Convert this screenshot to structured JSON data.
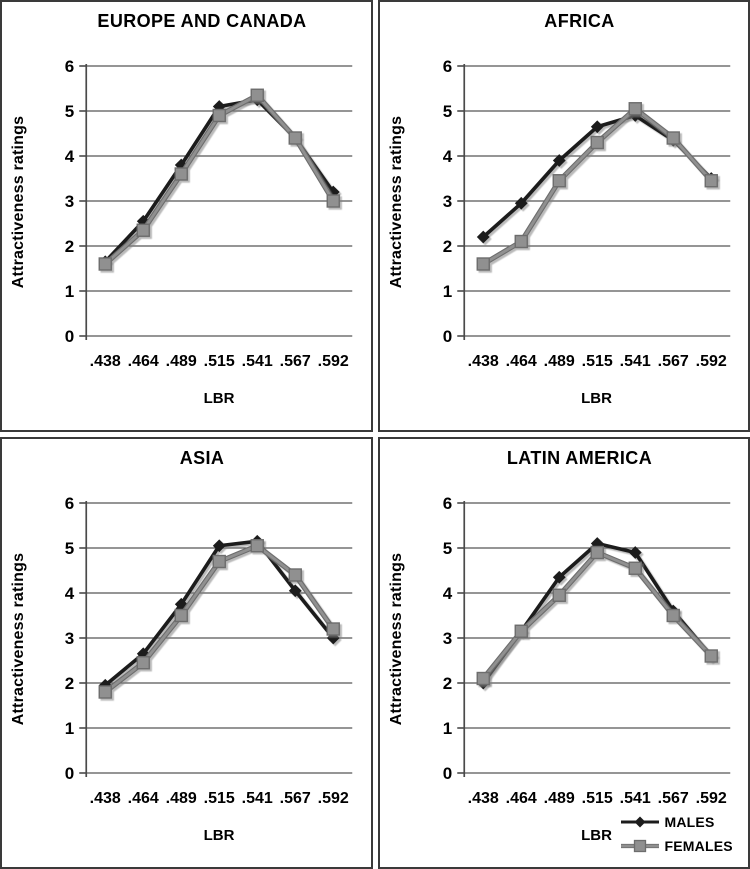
{
  "colors": {
    "males_line": "#1c1c1c",
    "females_line": "#909090",
    "females_edge": "#6d6d6d",
    "grid_line": "#565656",
    "axis_line": "#4a4a4a",
    "panel_border": "#3a3a3a",
    "text": "#000000",
    "shadow": "rgba(130,130,130,0.55)"
  },
  "chart_data": [
    {
      "type": "line",
      "title": "EUROPE AND CANADA",
      "xlabel": "LBR",
      "ylabel": "Attractiveness ratings",
      "ylim": [
        0,
        6
      ],
      "yticks": [
        0,
        1,
        2,
        3,
        4,
        5,
        6
      ],
      "grid": true,
      "legend_position": "none",
      "categories": [
        ".438",
        ".464",
        ".489",
        ".515",
        ".541",
        ".567",
        ".592"
      ],
      "series": [
        {
          "name": "MALES",
          "marker": "diamond",
          "color_key": "males_line",
          "values": [
            1.65,
            2.55,
            3.8,
            5.1,
            5.25,
            4.4,
            3.2
          ]
        },
        {
          "name": "FEMALES",
          "marker": "square",
          "color_key": "females_line",
          "values": [
            1.6,
            2.35,
            3.6,
            4.9,
            5.35,
            4.4,
            3.0
          ]
        }
      ]
    },
    {
      "type": "line",
      "title": "AFRICA",
      "xlabel": "LBR",
      "ylabel": "Attractiveness ratings",
      "ylim": [
        0,
        6
      ],
      "yticks": [
        0,
        1,
        2,
        3,
        4,
        5,
        6
      ],
      "grid": true,
      "legend_position": "none",
      "categories": [
        ".438",
        ".464",
        ".489",
        ".515",
        ".541",
        ".567",
        ".592"
      ],
      "series": [
        {
          "name": "MALES",
          "marker": "diamond",
          "color_key": "males_line",
          "values": [
            2.2,
            2.95,
            3.9,
            4.65,
            4.9,
            4.35,
            3.5
          ]
        },
        {
          "name": "FEMALES",
          "marker": "square",
          "color_key": "females_line",
          "values": [
            1.6,
            2.1,
            3.45,
            4.3,
            5.05,
            4.4,
            3.45
          ]
        }
      ]
    },
    {
      "type": "line",
      "title": "ASIA",
      "xlabel": "LBR",
      "ylabel": "Attractiveness ratings",
      "ylim": [
        0,
        6
      ],
      "yticks": [
        0,
        1,
        2,
        3,
        4,
        5,
        6
      ],
      "grid": true,
      "legend_position": "none",
      "categories": [
        ".438",
        ".464",
        ".489",
        ".515",
        ".541",
        ".567",
        ".592"
      ],
      "series": [
        {
          "name": "MALES",
          "marker": "diamond",
          "color_key": "males_line",
          "values": [
            1.95,
            2.65,
            3.75,
            5.05,
            5.15,
            4.05,
            3.0
          ]
        },
        {
          "name": "FEMALES",
          "marker": "square",
          "color_key": "females_line",
          "values": [
            1.8,
            2.45,
            3.5,
            4.7,
            5.05,
            4.4,
            3.2
          ]
        }
      ]
    },
    {
      "type": "line",
      "title": "LATIN AMERICA",
      "xlabel": "LBR",
      "ylabel": "Attractiveness ratings",
      "ylim": [
        0,
        6
      ],
      "yticks": [
        0,
        1,
        2,
        3,
        4,
        5,
        6
      ],
      "grid": true,
      "legend_position": "below-plot-right",
      "categories": [
        ".438",
        ".464",
        ".489",
        ".515",
        ".541",
        ".567",
        ".592"
      ],
      "series": [
        {
          "name": "MALES",
          "marker": "diamond",
          "color_key": "males_line",
          "values": [
            2.0,
            3.15,
            4.35,
            5.1,
            4.9,
            3.6,
            2.6
          ]
        },
        {
          "name": "FEMALES",
          "marker": "square",
          "color_key": "females_line",
          "values": [
            2.1,
            3.15,
            3.95,
            4.9,
            4.55,
            3.5,
            2.6
          ]
        }
      ]
    }
  ]
}
